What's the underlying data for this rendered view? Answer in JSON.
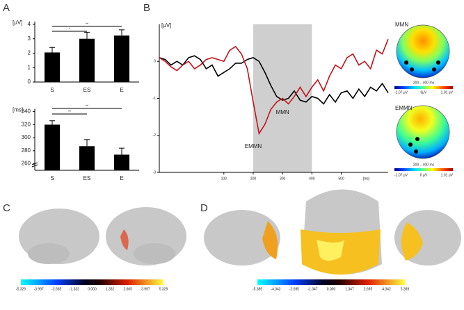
{
  "panels": [
    "A",
    "B",
    "C",
    "D"
  ],
  "chart_data": [
    {
      "type": "bar",
      "ylabel": "[μV]",
      "categories": [
        "S",
        "ES",
        "E"
      ],
      "values": [
        2.05,
        3.0,
        3.22
      ],
      "errors": [
        0.35,
        0.45,
        0.4
      ],
      "color": "#000000",
      "ylim": [
        0,
        4
      ],
      "yticks": [
        0,
        1,
        2,
        3,
        4
      ],
      "significance": [
        "**",
        "*"
      ]
    },
    {
      "type": "bar",
      "ylabel": "[ms]",
      "categories": [
        "S",
        "ES",
        "E"
      ],
      "values": [
        320,
        287,
        274
      ],
      "errors": [
        6,
        10,
        10
      ],
      "color": "#000000",
      "ylim": [
        250,
        340
      ],
      "yticks": [
        260,
        280,
        300,
        320,
        340
      ],
      "significance": [
        "**",
        "**"
      ]
    },
    {
      "type": "line",
      "ylabel": "[μV]",
      "xlabel": "[ms]",
      "x": [
        -120,
        -100,
        -80,
        -60,
        -40,
        -20,
        0,
        20,
        40,
        60,
        80,
        100,
        120,
        140,
        160,
        180,
        200,
        220,
        240,
        260,
        280,
        300,
        320,
        340,
        360,
        380,
        400,
        420,
        440,
        460,
        480,
        500,
        520,
        540,
        560,
        580,
        600,
        620,
        640,
        660
      ],
      "series": [
        {
          "name": "MMN",
          "color": "#000000",
          "values": [
            0.1,
            0.05,
            -0.1,
            0.0,
            -0.1,
            0.1,
            0.15,
            0.05,
            -0.2,
            -0.1,
            -0.4,
            -0.3,
            -0.2,
            -0.05,
            -0.05,
            0.05,
            0.1,
            0.0,
            -0.3,
            -0.65,
            -0.95,
            -1.05,
            -1.0,
            -0.8,
            -1.05,
            -1.1,
            -0.95,
            -1.0,
            -1.15,
            -0.9,
            -1.1,
            -0.85,
            -0.8,
            -1.0,
            -0.75,
            -0.95,
            -0.7,
            -0.8,
            -0.6,
            -0.85
          ]
        },
        {
          "name": "EMMN",
          "color": "#c0141c",
          "values": [
            0.1,
            0.0,
            -0.15,
            -0.25,
            -0.1,
            0.0,
            -0.2,
            -0.1,
            0.05,
            0.1,
            0.05,
            0.0,
            0.3,
            0.4,
            0.2,
            -0.2,
            -1.1,
            -1.95,
            -1.7,
            -1.3,
            -1.1,
            -1.0,
            -1.15,
            -0.95,
            -0.7,
            -0.95,
            -0.7,
            -0.5,
            -0.8,
            -0.4,
            -0.1,
            -0.2,
            0.1,
            0.2,
            -0.1,
            0.0,
            -0.2,
            0.3,
            0.2,
            0.6
          ]
        }
      ],
      "shaded": [
        200,
        400
      ],
      "xlim": [
        -120,
        660
      ],
      "ylim": [
        -3,
        1
      ],
      "xticks": [
        100,
        200,
        300,
        400,
        500
      ],
      "yticks": [
        -3,
        -2,
        -1,
        0
      ]
    }
  ],
  "topomaps": [
    {
      "title": "MMN",
      "window": "200 – 400 ms",
      "scale": [
        "-1.07 μV",
        "0μV",
        "1.01 μV"
      ]
    },
    {
      "title": "EMMN",
      "window": "200 – 400 ms",
      "scale": [
        "-1.07 μV",
        "0 μV",
        "1.01 μV"
      ]
    }
  ],
  "brain_scales": [
    [
      "-5.329",
      "-3.997",
      "-2.665",
      "-1.332",
      "0.000",
      "1.332",
      "2.665",
      "3.997",
      "5.329"
    ],
    [
      "-5.389",
      "-4.042",
      "-2.695",
      "-1.347",
      "0.000",
      "1.347",
      "2.695",
      "4.042",
      "5.389"
    ]
  ]
}
